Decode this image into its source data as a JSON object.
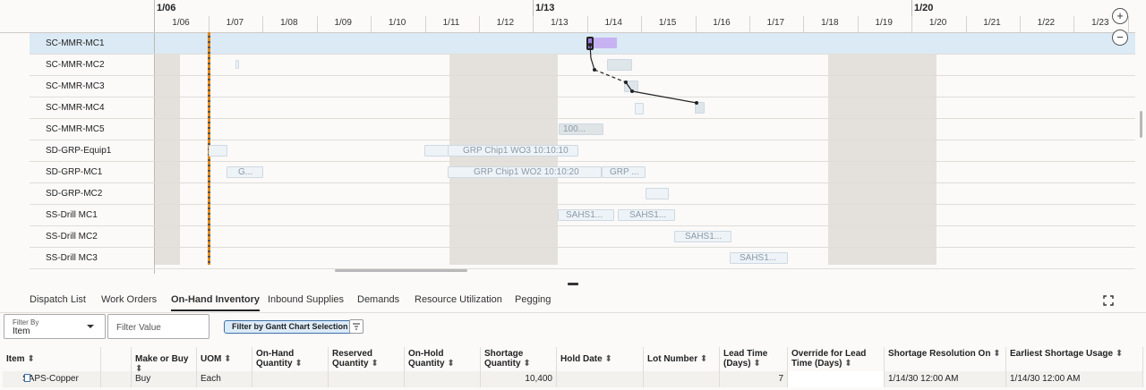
{
  "gantt": {
    "weeks": [
      "1/06",
      "1/13",
      "1/20"
    ],
    "days": [
      "1/06",
      "1/07",
      "1/08",
      "1/09",
      "1/10",
      "1/11",
      "1/12",
      "1/13",
      "1/14",
      "1/15",
      "1/16",
      "1/17",
      "1/18",
      "1/19",
      "1/20",
      "1/21",
      "1/22",
      "1/23"
    ],
    "resources": [
      "SC-MMR-MC1",
      "SC-MMR-MC2",
      "SC-MMR-MC3",
      "SC-MMR-MC4",
      "SC-MMR-MC5",
      "SD-GRP-Equip1",
      "SD-GRP-MC1",
      "SD-GRP-MC2",
      "SS-Drill MC1",
      "SS-Drill MC2",
      "SS-Drill MC3"
    ],
    "bars": {
      "mc5": "100...",
      "equip1_wo3": "GRP Chip1 WO3 10:10:10",
      "mc1_g": "G...",
      "mc1_wo2": "GRP Chip1 WO2 10:10:20",
      "mc1_grp": "GRP ...",
      "drill1_a": "SAHS1...",
      "drill1_b": "SAHS1...",
      "drill2": "SAHS1...",
      "drill3": "SAHS1..."
    },
    "zoom_in": "+",
    "zoom_out": "−"
  },
  "tabs": [
    "Dispatch List",
    "Work Orders",
    "On-Hand Inventory",
    "Inbound Supplies",
    "Demands",
    "Resource Utilization",
    "Pegging"
  ],
  "active_tab": "On-Hand Inventory",
  "filters": {
    "filter_by_label": "Filter By",
    "filter_by_value": "Item",
    "filter_value_placeholder": "Filter Value",
    "gantt_filter_button": "Filter by Gantt Chart Selection"
  },
  "table": {
    "columns": [
      "Item",
      "",
      "Make or Buy",
      "UOM",
      "On-Hand Quantity",
      "Reserved Quantity",
      "On-Hold Quantity",
      "Shortage Quantity",
      "Hold Date",
      "Lot Number",
      "Lead Time (Days)",
      "Override for Lead Time (Days)",
      "Shortage Resolution On",
      "Earliest Shortage Usage"
    ],
    "rows": [
      [
        "SAPS-Copper",
        "",
        "Buy",
        "Each",
        "",
        "",
        "",
        "10,400",
        "",
        "",
        "7",
        "",
        "1/14/30 12:00 AM",
        "1/14/30 12:00 AM"
      ]
    ]
  }
}
